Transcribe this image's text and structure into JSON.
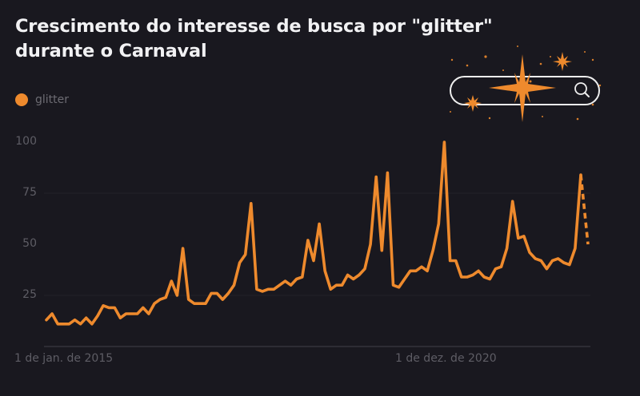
{
  "title": "Crescimento do interesse de busca por \"glitter\" durante o Carnaval",
  "legend": {
    "label": "glitter",
    "color": "#ee8a2d"
  },
  "yaxis": {
    "ticks": [
      "100",
      "75",
      "50",
      "25"
    ]
  },
  "xaxis": {
    "ticks": [
      "1 de jan. de 2015",
      "1 de dez. de 2020"
    ]
  },
  "decoration": {
    "icon": "search-bar-with-sparkles-icon"
  },
  "colors": {
    "background": "#19181f",
    "line": "#ee8a2d",
    "title": "#f1f1f3",
    "axis_text": "#5e5d65"
  },
  "chart_data": {
    "type": "line",
    "title": "Crescimento do interesse de busca por \"glitter\" durante o Carnaval",
    "xlabel": "",
    "ylabel": "",
    "ylim": [
      0,
      100
    ],
    "yticks": [
      25,
      50,
      75,
      100
    ],
    "xtick_labels": [
      "1 de jan. de 2015",
      "1 de dez. de 2020"
    ],
    "grid": true,
    "legend_position": "top-left",
    "series": [
      {
        "name": "glitter",
        "color": "#ee8a2d",
        "values": [
          13,
          16,
          11,
          11,
          11,
          13,
          11,
          14,
          11,
          15,
          20,
          19,
          19,
          14,
          16,
          16,
          16,
          19,
          16,
          21,
          23,
          24,
          32,
          25,
          48,
          23,
          21,
          21,
          21,
          26,
          26,
          23,
          26,
          30,
          41,
          45,
          70,
          28,
          27,
          28,
          28,
          30,
          32,
          30,
          33,
          34,
          52,
          42,
          60,
          37,
          28,
          30,
          30,
          35,
          33,
          35,
          38,
          50,
          83,
          47,
          85,
          30,
          29,
          33,
          37,
          37,
          39,
          37,
          47,
          60,
          100,
          42,
          42,
          34,
          34,
          35,
          37,
          34,
          33,
          38,
          39,
          48,
          71,
          53,
          54,
          46,
          43,
          42,
          38,
          42,
          43,
          41,
          40,
          48,
          84
        ],
        "projected_tail": [
          84,
          50
        ]
      }
    ]
  }
}
